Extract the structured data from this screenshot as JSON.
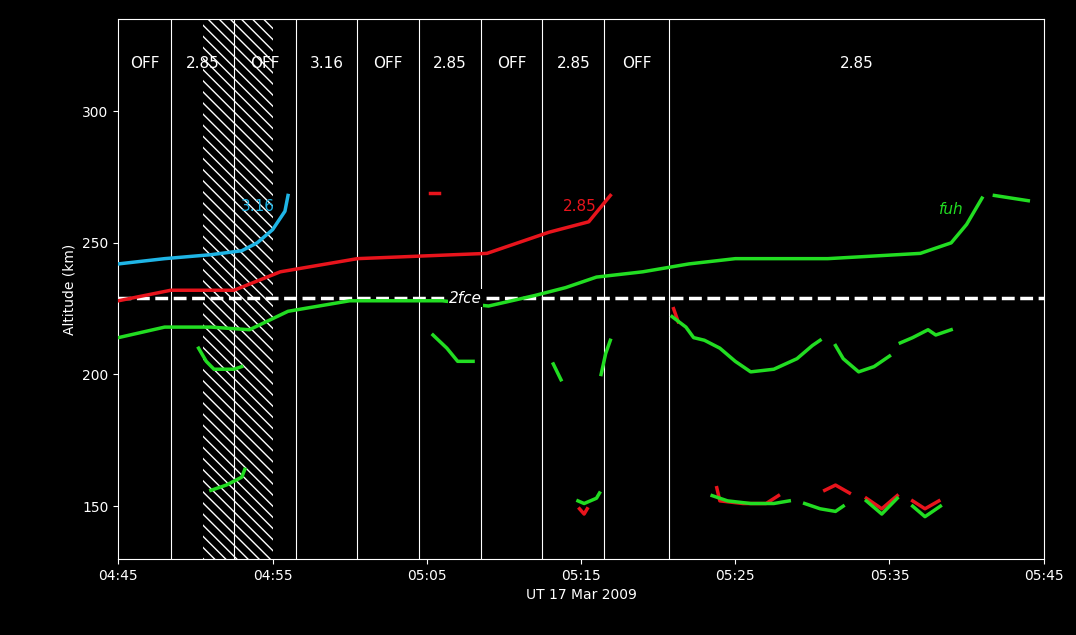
{
  "chart_data": {
    "type": "line",
    "xlabel": "UT 17 Mar 2009",
    "ylabel": "Altitude (km)",
    "xlim": [
      285,
      345
    ],
    "xticks": [
      {
        "value": 285,
        "label": "04:45"
      },
      {
        "value": 295,
        "label": "04:55"
      },
      {
        "value": 305,
        "label": "05:05"
      },
      {
        "value": 315,
        "label": "05:15"
      },
      {
        "value": 325,
        "label": "05:25"
      },
      {
        "value": 335,
        "label": "05:35"
      },
      {
        "value": 345,
        "label": "05:45"
      }
    ],
    "ylim": [
      130,
      335
    ],
    "yticks": [
      150,
      200,
      250,
      300
    ],
    "grid": false,
    "periods": [
      {
        "start": 285,
        "end": 288.4,
        "label": "OFF"
      },
      {
        "start": 288.4,
        "end": 292.5,
        "label": "2.85"
      },
      {
        "start": 292.5,
        "end": 296.5,
        "label": "OFF"
      },
      {
        "start": 296.5,
        "end": 300.5,
        "label": "3.16"
      },
      {
        "start": 300.5,
        "end": 304.5,
        "label": "OFF"
      },
      {
        "start": 304.5,
        "end": 308.5,
        "label": "2.85"
      },
      {
        "start": 308.5,
        "end": 312.5,
        "label": "OFF"
      },
      {
        "start": 312.5,
        "end": 316.5,
        "label": "2.85"
      },
      {
        "start": 316.5,
        "end": 320.7,
        "label": "OFF"
      },
      {
        "start": 320.7,
        "end": 345,
        "label": "2.85"
      }
    ],
    "period_label_altitude": 318,
    "hatched": [
      290.5,
      295.0
    ],
    "hlines": [
      {
        "name": "2fce",
        "value": 229,
        "color": "#ffffff",
        "line_style": "dashed",
        "label_x": 307.5
      }
    ],
    "series": [
      {
        "name": "3.16",
        "color": "#1fb5e6",
        "x": [
          285,
          288,
          291,
          293,
          294,
          295,
          295.8,
          296
        ],
        "values": [
          242,
          244,
          245.5,
          247,
          250,
          255,
          262,
          268
        ]
      },
      {
        "name": "2.85",
        "color": "#e8141c",
        "x": [
          285,
          288.4,
          292.5,
          295.5,
          300.5,
          308.9,
          310.9,
          312.9,
          315.5,
          316.9
        ],
        "values": [
          228,
          232,
          232,
          239,
          244,
          246,
          250,
          254,
          258,
          268
        ]
      },
      {
        "name": "fuh",
        "color": "#22dd22",
        "x": [
          285,
          288,
          291,
          293.5,
          296,
          300,
          304,
          306,
          309,
          312,
          314,
          316,
          319,
          322,
          325,
          328,
          331,
          334,
          337,
          339,
          340,
          341
        ],
        "values": [
          214,
          218,
          218,
          217,
          224,
          228,
          228,
          228,
          226,
          230,
          233,
          237,
          239,
          242,
          244,
          244,
          244,
          245,
          246,
          250,
          257,
          267
        ]
      },
      {
        "color": "#22dd22",
        "x": [
          341.8,
          344
        ],
        "values": [
          268,
          266
        ]
      },
      {
        "color": "#e8141c",
        "x": [
          305.2,
          305.8
        ],
        "values": [
          269,
          269
        ]
      },
      {
        "color": "#e8141c",
        "x": [
          321.0,
          321.3
        ],
        "values": [
          225,
          220
        ]
      },
      {
        "color": "#e8141c",
        "x": [
          314.9,
          315.2,
          315.4
        ],
        "values": [
          149,
          147,
          149
        ]
      },
      {
        "color": "#e8141c",
        "x": [
          323.8,
          324,
          325.5,
          327,
          327.8
        ],
        "values": [
          157,
          152,
          151,
          151,
          154
        ]
      },
      {
        "color": "#e8141c",
        "x": [
          330.8,
          331.5,
          332.4
        ],
        "values": [
          156,
          158,
          155
        ]
      },
      {
        "color": "#e8141c",
        "x": [
          333.5,
          334.5,
          335.5
        ],
        "values": [
          153,
          149,
          154
        ]
      },
      {
        "color": "#e8141c",
        "x": [
          336.5,
          337.3,
          338.2
        ],
        "values": [
          152,
          149,
          152
        ]
      },
      {
        "color": "#22dd22",
        "x": [
          290.2,
          290.7,
          291.2,
          292.5,
          293
        ],
        "values": [
          210,
          205,
          202,
          202,
          203
        ]
      },
      {
        "color": "#22dd22",
        "x": [
          291,
          292,
          293,
          293.2
        ],
        "values": [
          156,
          158,
          161,
          164
        ]
      },
      {
        "color": "#22dd22",
        "x": [
          305.4,
          306.3,
          307,
          308
        ],
        "values": [
          215,
          210,
          205,
          205
        ]
      },
      {
        "color": "#22dd22",
        "x": [
          313.2,
          313.7
        ],
        "values": [
          204,
          198
        ]
      },
      {
        "color": "#22dd22",
        "x": [
          316.3,
          316.6,
          316.9
        ],
        "values": [
          200,
          208,
          213
        ]
      },
      {
        "color": "#22dd22",
        "x": [
          314.8,
          315.2,
          316,
          316.2
        ],
        "values": [
          152,
          151,
          153,
          155
        ]
      },
      {
        "color": "#22dd22",
        "x": [
          320.9,
          321.8,
          322.3,
          323,
          324,
          325,
          326,
          327.5,
          329,
          330,
          330.5
        ],
        "values": [
          222,
          218,
          214,
          213,
          210,
          205,
          201,
          202,
          206,
          211,
          213
        ]
      },
      {
        "color": "#22dd22",
        "x": [
          331.5,
          332,
          333,
          334,
          335
        ],
        "values": [
          211,
          206,
          201,
          203,
          207
        ]
      },
      {
        "color": "#22dd22",
        "x": [
          335.7,
          336.5,
          337.5,
          338,
          339
        ],
        "values": [
          212,
          214,
          217,
          215,
          217
        ]
      },
      {
        "color": "#22dd22",
        "x": [
          323.5,
          324.5,
          326,
          327.5,
          328.5
        ],
        "values": [
          154,
          152,
          151,
          151,
          152
        ]
      },
      {
        "color": "#22dd22",
        "x": [
          329.5,
          330.5,
          331.5,
          332
        ],
        "values": [
          151,
          149,
          148,
          150
        ]
      },
      {
        "color": "#22dd22",
        "x": [
          333.5,
          334.5,
          335.5
        ],
        "values": [
          152,
          147,
          153
        ]
      },
      {
        "color": "#22dd22",
        "x": [
          336.5,
          337.3,
          338.3
        ],
        "values": [
          150,
          146,
          150
        ]
      }
    ]
  }
}
